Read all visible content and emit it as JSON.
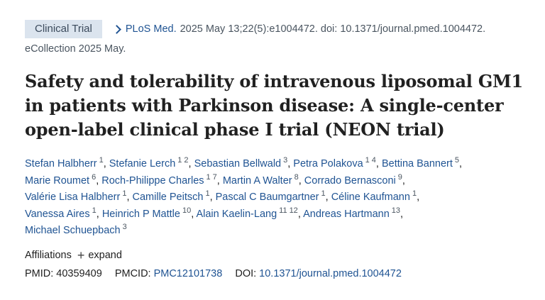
{
  "header": {
    "badge": "Clinical Trial",
    "journal": "PLoS Med.",
    "citation": "2025 May 13;22(5):e1004472. doi: 10.1371/journal.pmed.1004472.",
    "ecollection": "eCollection 2025 May."
  },
  "title_lines": [
    "Safety and tolerability of intravenous liposomal GM1",
    "in patients with Parkinson disease: A single-center",
    "open-label clinical phase I trial (NEON trial)"
  ],
  "authors": [
    {
      "name": "Stefan Halbherr",
      "affils": [
        "1"
      ]
    },
    {
      "name": "Stefanie Lerch",
      "affils": [
        "1",
        "2"
      ]
    },
    {
      "name": "Sebastian Bellwald",
      "affils": [
        "3"
      ]
    },
    {
      "name": "Petra Polakova",
      "affils": [
        "1",
        "4"
      ]
    },
    {
      "name": "Bettina Bannert",
      "affils": [
        "5"
      ]
    },
    {
      "name": "Marie Roumet",
      "affils": [
        "6"
      ]
    },
    {
      "name": "Roch-Philippe Charles",
      "affils": [
        "1",
        "7"
      ]
    },
    {
      "name": "Martin A Walter",
      "affils": [
        "8"
      ]
    },
    {
      "name": "Corrado Bernasconi",
      "affils": [
        "9"
      ]
    },
    {
      "name": "Valérie Lisa Halbherr",
      "affils": [
        "1"
      ]
    },
    {
      "name": "Camille Peitsch",
      "affils": [
        "1"
      ]
    },
    {
      "name": "Pascal C Baumgartner",
      "affils": [
        "1"
      ]
    },
    {
      "name": "Céline Kaufmann",
      "affils": [
        "1"
      ]
    },
    {
      "name": "Vanessa Aires",
      "affils": [
        "1"
      ]
    },
    {
      "name": "Heinrich P Mattle",
      "affils": [
        "10"
      ]
    },
    {
      "name": "Alain Kaelin-Lang",
      "affils": [
        "11",
        "12"
      ]
    },
    {
      "name": "Andreas Hartmann",
      "affils": [
        "13"
      ]
    },
    {
      "name": "Michael Schuepbach",
      "affils": [
        "3"
      ]
    }
  ],
  "author_lines": [
    [
      0,
      1,
      2,
      3,
      4
    ],
    [
      5,
      6,
      7,
      8
    ],
    [
      9,
      10,
      11,
      12
    ],
    [
      13,
      14,
      15,
      16
    ],
    [
      17
    ]
  ],
  "affiliations": {
    "label": "Affiliations",
    "expand_label": "expand"
  },
  "identifiers": {
    "pmid_label": "PMID:",
    "pmid": "40359409",
    "pmcid_label": "PMCID:",
    "pmcid": "PMC12101738",
    "doi_label": "DOI:",
    "doi": "10.1371/journal.pmed.1004472"
  },
  "icons": {
    "journal_link": "chevron-right-icon",
    "expand": "plus-icon"
  },
  "colors": {
    "link": "#205493",
    "badge_bg": "#dbe4ee",
    "text": "#212121"
  }
}
